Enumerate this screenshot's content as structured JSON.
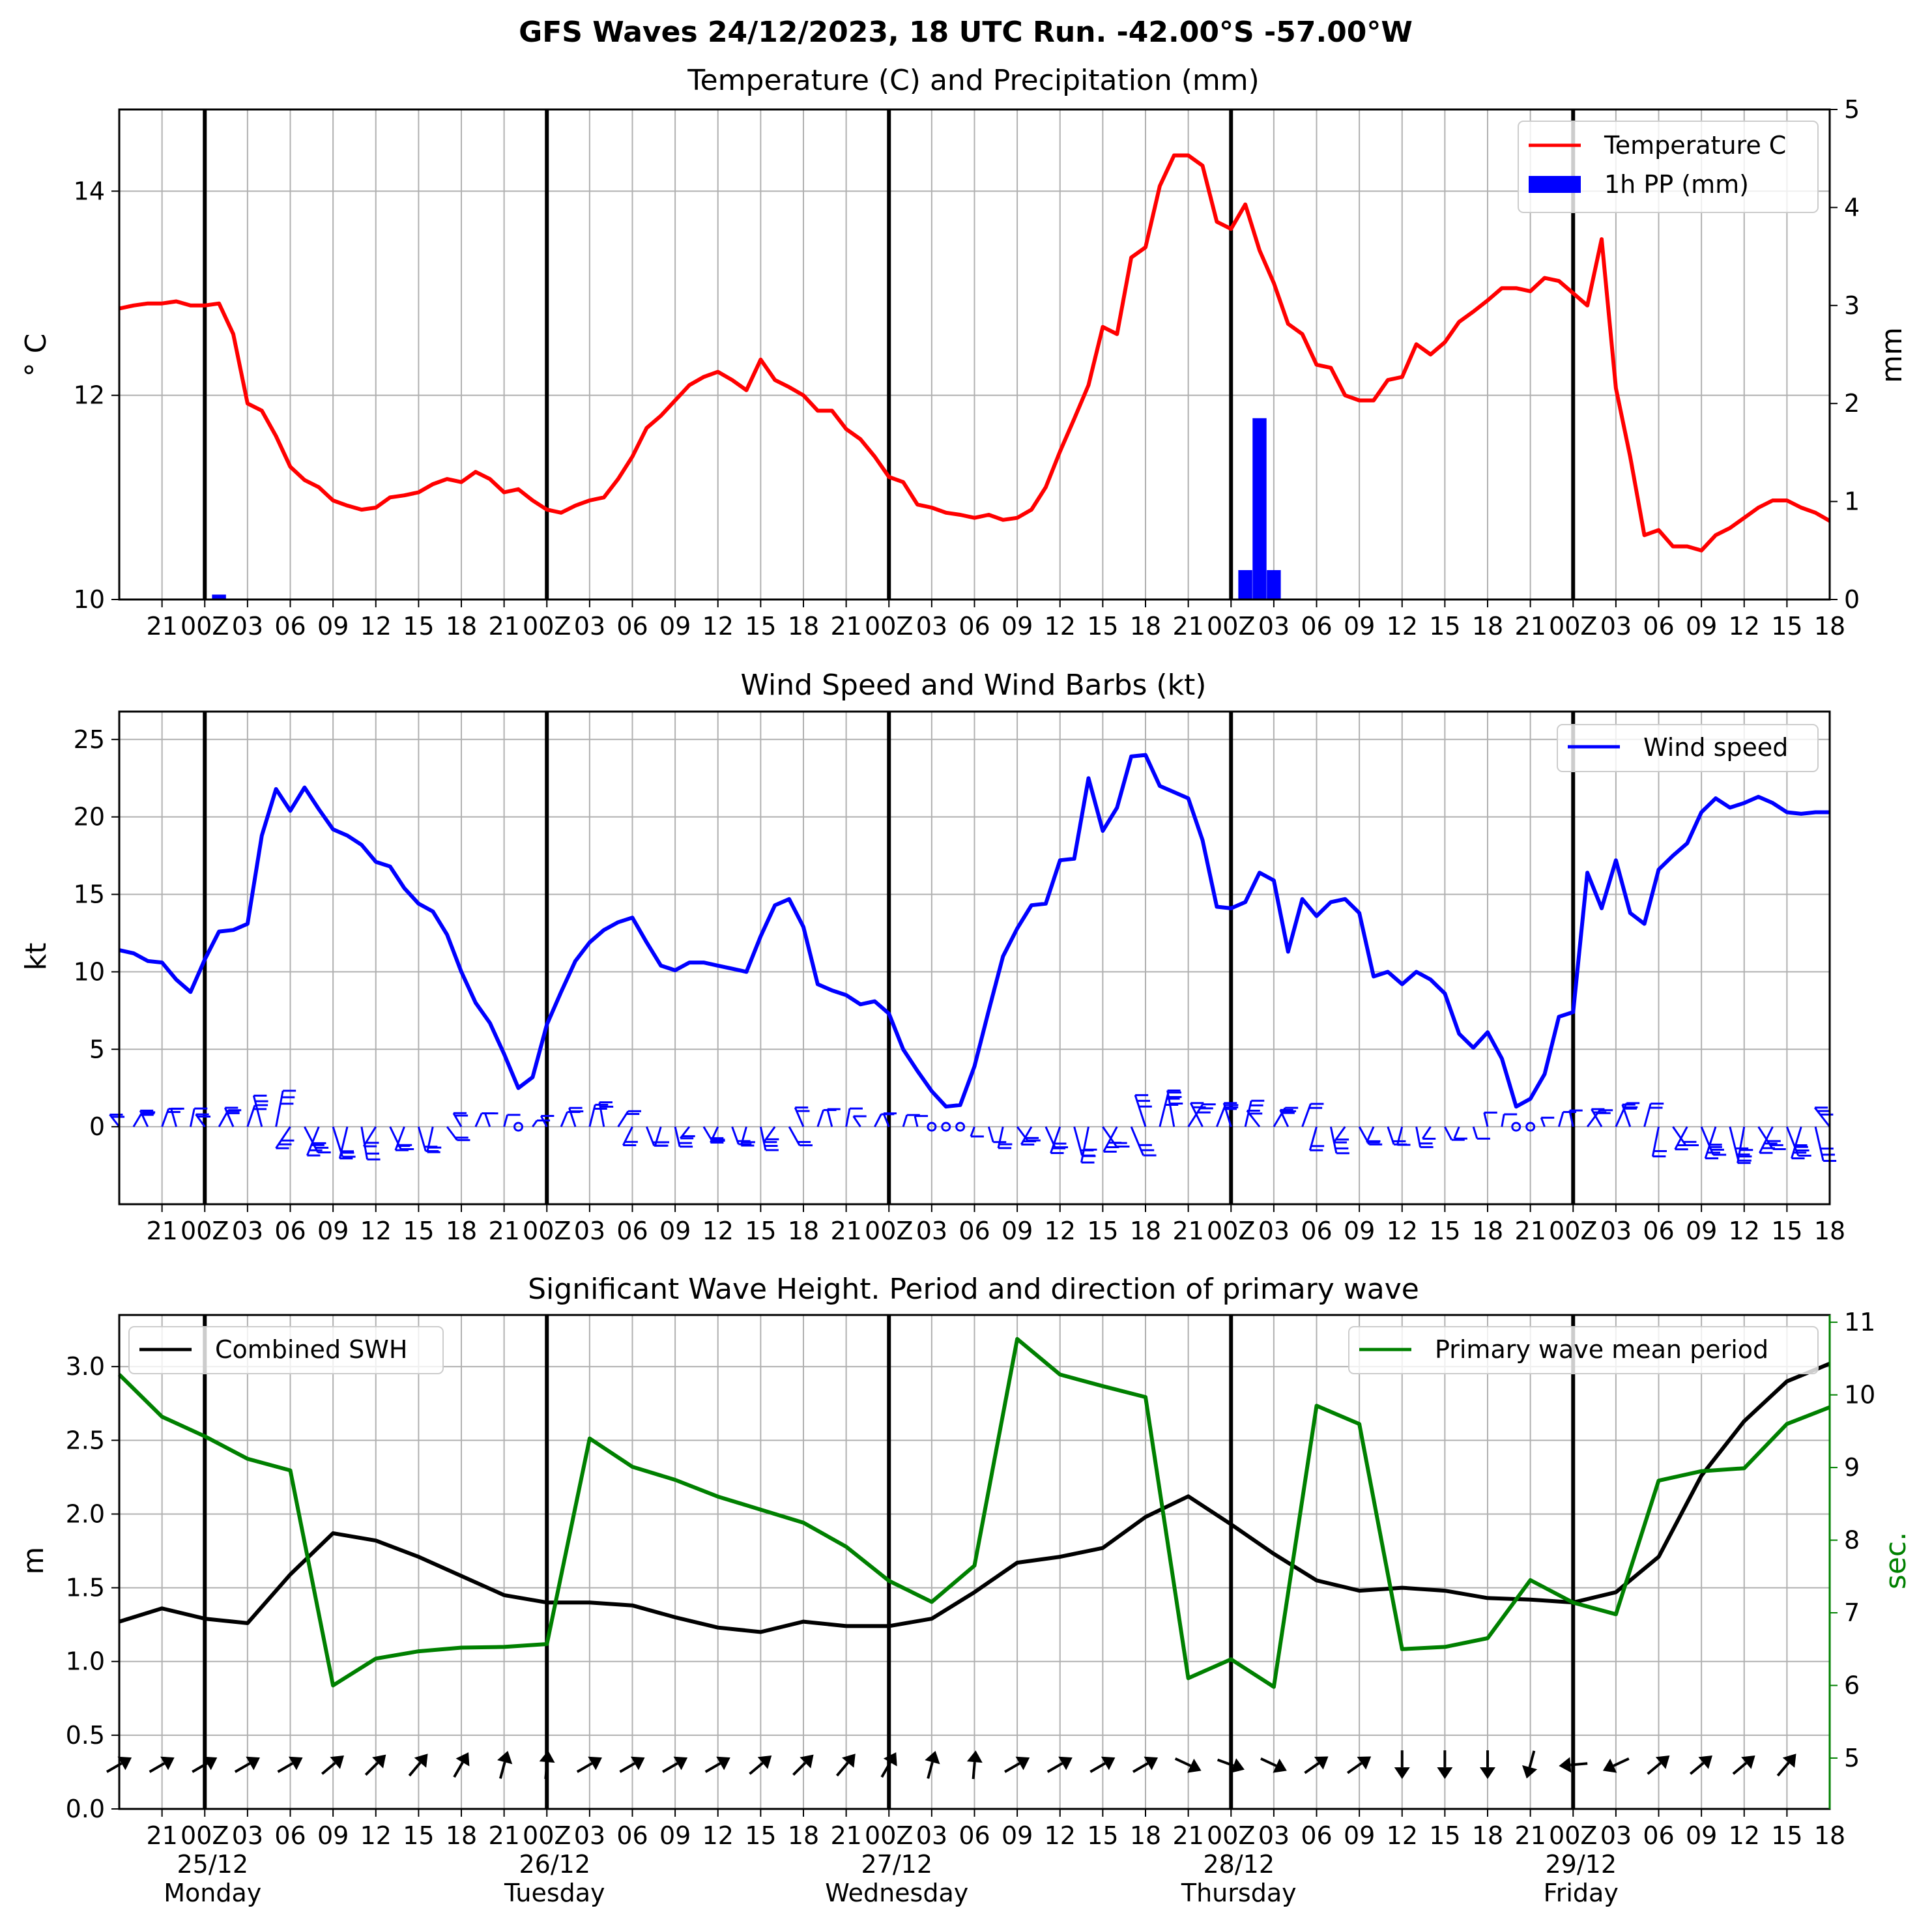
{
  "suptitle": "GFS Waves 24/12/2023, 18 UTC Run. -42.00°S -57.00°W",
  "x_tick_labels": [
    "21",
    "00Z",
    "03",
    "06",
    "09",
    "12",
    "15",
    "18"
  ],
  "x_day_labels": [
    {
      "date": "25/12",
      "day": "Monday"
    },
    {
      "date": "26/12",
      "day": "Tuesday"
    },
    {
      "date": "27/12",
      "day": "Wednesday"
    },
    {
      "date": "28/12",
      "day": "Thursday"
    },
    {
      "date": "29/12",
      "day": "Friday"
    }
  ],
  "colors": {
    "temperature": "#ff0000",
    "precip": "#0000ff",
    "wind": "#0000ff",
    "swh": "#000000",
    "period": "#008000",
    "grid": "#b0b0b0"
  },
  "chart_data": [
    {
      "type": "line",
      "title": "Temperature (C) and Precipitation (mm)",
      "ylabel": "$^\\circ$C",
      "y2label": "mm",
      "ylim": [
        10,
        14.8
      ],
      "y2lim": [
        0,
        5
      ],
      "yticks": [
        10,
        12,
        14
      ],
      "y2ticks": [
        0,
        1,
        2,
        3,
        4,
        5
      ],
      "x_unit": "hours after 2023-12-24 18 UTC",
      "xlim": [
        0,
        120
      ],
      "legend": "top-right",
      "series": [
        {
          "name": "Temperature C",
          "color": "#ff0000",
          "x": [
            0,
            1,
            2,
            3,
            4,
            5,
            6,
            7,
            8,
            9,
            10,
            11,
            12,
            13,
            14,
            15,
            16,
            17,
            18,
            19,
            20,
            21,
            22,
            23,
            24,
            25,
            26,
            27,
            28,
            29,
            30,
            31,
            32,
            33,
            34,
            35,
            36,
            37,
            38,
            39,
            40,
            41,
            42,
            43,
            44,
            45,
            46,
            47,
            48,
            49,
            50,
            51,
            52,
            53,
            54,
            55,
            56,
            57,
            58,
            59,
            60,
            61,
            62,
            63,
            64,
            65,
            66,
            67,
            68,
            69,
            70,
            71,
            72,
            73,
            74,
            75,
            76,
            77,
            78,
            79,
            80,
            81,
            82,
            83,
            84,
            85,
            86,
            87,
            88,
            89,
            90,
            91,
            92,
            93,
            94,
            95,
            96,
            97,
            98,
            99,
            100,
            101,
            102,
            103,
            104,
            105,
            106,
            107,
            108,
            109,
            110,
            111,
            112,
            113,
            114,
            115,
            116,
            117,
            118,
            119,
            120
          ],
          "y": [
            12.85,
            12.88,
            12.9,
            12.9,
            12.92,
            12.88,
            12.88,
            12.9,
            12.6,
            11.92,
            11.85,
            11.6,
            11.3,
            11.17,
            11.1,
            10.97,
            10.92,
            10.88,
            10.9,
            11.0,
            11.02,
            11.05,
            11.13,
            11.18,
            11.15,
            11.25,
            11.18,
            11.05,
            11.08,
            10.97,
            10.88,
            10.85,
            10.92,
            10.97,
            11.0,
            11.18,
            11.4,
            11.68,
            11.8,
            11.95,
            12.1,
            12.18,
            12.23,
            12.15,
            12.05,
            12.35,
            12.15,
            12.08,
            12.0,
            11.85,
            11.85,
            11.67,
            11.57,
            11.4,
            11.2,
            11.15,
            10.93,
            10.9,
            10.85,
            10.83,
            10.8,
            10.83,
            10.78,
            10.8,
            10.88,
            11.1,
            11.45,
            11.77,
            12.1,
            12.67,
            12.6,
            13.35,
            13.45,
            14.05,
            14.35,
            14.35,
            14.25,
            13.7,
            13.63,
            13.87,
            13.42,
            13.1,
            12.7,
            12.6,
            12.3,
            12.27,
            12.0,
            11.95,
            11.95,
            12.15,
            12.18,
            12.5,
            12.4,
            12.52,
            12.72,
            12.82,
            12.93,
            13.05,
            13.05,
            13.02,
            13.15,
            13.12,
            13.0,
            12.88,
            13.53,
            12.07,
            11.4,
            10.63,
            10.68,
            10.52,
            10.52,
            10.48,
            10.63,
            10.7,
            10.8,
            10.9,
            10.97,
            10.97,
            10.9,
            10.85,
            10.77
          ]
        },
        {
          "name": "1h PP (mm)",
          "color": "#0000ff",
          "axis": "right",
          "kind": "bar",
          "x": [
            7,
            79,
            80,
            81
          ],
          "y": [
            0.05,
            0.3,
            1.85,
            0.3
          ]
        }
      ]
    },
    {
      "type": "line",
      "title": "Wind Speed and Wind Barbs (kt)",
      "ylabel": "kt",
      "ylim": [
        -5,
        26.8
      ],
      "yticks": [
        0,
        5,
        10,
        15,
        20,
        25
      ],
      "x_unit": "hours after 2023-12-24 18 UTC",
      "xlim": [
        0,
        120
      ],
      "legend": "top-right",
      "series": [
        {
          "name": "Wind speed",
          "color": "#0000ff",
          "x": [
            0,
            1,
            2,
            3,
            4,
            5,
            6,
            7,
            8,
            9,
            10,
            11,
            12,
            13,
            14,
            15,
            16,
            17,
            18,
            19,
            20,
            21,
            22,
            23,
            24,
            25,
            26,
            27,
            28,
            29,
            30,
            31,
            32,
            33,
            34,
            35,
            36,
            37,
            38,
            39,
            40,
            41,
            42,
            43,
            44,
            45,
            46,
            47,
            48,
            49,
            50,
            51,
            52,
            53,
            54,
            55,
            56,
            57,
            58,
            59,
            60,
            61,
            62,
            63,
            64,
            65,
            66,
            67,
            68,
            69,
            70,
            71,
            72,
            73,
            74,
            75,
            76,
            77,
            78,
            79,
            80,
            81,
            82,
            83,
            84,
            85,
            86,
            87,
            88,
            89,
            90,
            91,
            92,
            93,
            94,
            95,
            96,
            97,
            98,
            99,
            100,
            101,
            102,
            103,
            104,
            105,
            106,
            107,
            108,
            109,
            110,
            111,
            112,
            113,
            114,
            115,
            116,
            117,
            118,
            119,
            120
          ],
          "y": [
            11.4,
            11.2,
            10.7,
            10.6,
            9.5,
            8.7,
            10.8,
            12.6,
            12.7,
            13.1,
            18.8,
            21.8,
            20.4,
            21.9,
            20.5,
            19.2,
            18.8,
            18.2,
            17.1,
            16.8,
            15.4,
            14.4,
            13.9,
            12.4,
            10.0,
            8.0,
            6.7,
            4.7,
            2.5,
            3.2,
            6.6,
            8.7,
            10.7,
            11.9,
            12.7,
            13.2,
            13.5,
            11.9,
            10.4,
            10.1,
            10.6,
            10.6,
            10.4,
            10.2,
            10.0,
            12.3,
            14.3,
            14.7,
            12.9,
            9.2,
            8.8,
            8.5,
            7.9,
            8.1,
            7.3,
            5.0,
            3.6,
            2.3,
            1.3,
            1.4,
            3.9,
            7.5,
            11.0,
            12.8,
            14.3,
            14.4,
            17.2,
            17.3,
            22.5,
            19.1,
            20.6,
            23.9,
            24.0,
            22.0,
            21.6,
            21.2,
            18.5,
            14.2,
            14.1,
            14.5,
            16.4,
            15.9,
            11.3,
            14.7,
            13.6,
            14.5,
            14.7,
            13.8,
            9.7,
            10.0,
            9.2,
            10.0,
            9.5,
            8.6,
            6.0,
            5.1,
            6.1,
            4.4,
            1.3,
            1.8,
            3.4,
            7.1,
            7.4,
            16.4,
            14.1,
            17.2,
            13.8,
            13.1,
            16.6,
            17.5,
            18.3,
            20.3,
            21.2,
            20.6,
            20.9,
            21.3,
            20.9,
            20.3,
            20.2,
            20.3,
            20.3
          ]
        }
      ]
    },
    {
      "type": "line",
      "title": "Significant Wave Height. Period and direction of primary wave",
      "ylabel": "m",
      "y2label": "sec.",
      "ylim": [
        0,
        3.35
      ],
      "y2lim": [
        4.3,
        11.1
      ],
      "yticks": [
        0.0,
        0.5,
        1.0,
        1.5,
        2.0,
        2.5,
        3.0
      ],
      "y2ticks": [
        5,
        6,
        7,
        8,
        9,
        10,
        11
      ],
      "x_unit": "hours after 2023-12-24 18 UTC",
      "xlim": [
        0,
        120
      ],
      "legend_left": "top-left",
      "legend_right": "top-right",
      "series": [
        {
          "name": "Combined SWH",
          "color": "#000000",
          "x": [
            0,
            3,
            6,
            9,
            12,
            15,
            18,
            21,
            24,
            27,
            30,
            33,
            36,
            39,
            42,
            45,
            48,
            51,
            54,
            57,
            60,
            63,
            66,
            69,
            72,
            75,
            78,
            81,
            84,
            87,
            90,
            93,
            96,
            99,
            102,
            105,
            108,
            111,
            114,
            117,
            120
          ],
          "y": [
            1.27,
            1.36,
            1.29,
            1.26,
            1.59,
            1.87,
            1.82,
            1.71,
            1.58,
            1.45,
            1.4,
            1.4,
            1.38,
            1.3,
            1.23,
            1.2,
            1.27,
            1.24,
            1.24,
            1.29,
            1.47,
            1.67,
            1.71,
            1.77,
            1.98,
            2.12,
            1.93,
            1.73,
            1.55,
            1.48,
            1.5,
            1.48,
            1.43,
            1.42,
            1.4,
            1.47,
            1.71,
            2.26,
            2.63,
            2.9,
            3.02
          ]
        },
        {
          "name": "Primary wave mean period",
          "color": "#008000",
          "axis": "right",
          "x": [
            0,
            3,
            6,
            9,
            12,
            15,
            18,
            21,
            24,
            27,
            30,
            33,
            36,
            39,
            42,
            45,
            48,
            51,
            54,
            57,
            60,
            63,
            66,
            69,
            72,
            75,
            78,
            81,
            84,
            87,
            90,
            93,
            96,
            99,
            102,
            105,
            108,
            111,
            114,
            117,
            120
          ],
          "y": [
            10.28,
            9.7,
            9.43,
            9.12,
            8.96,
            6.0,
            6.37,
            6.47,
            6.52,
            6.53,
            6.57,
            9.4,
            9.01,
            8.83,
            8.6,
            8.42,
            8.24,
            7.91,
            7.44,
            7.15,
            7.65,
            10.77,
            10.28,
            10.12,
            9.97,
            6.1,
            6.36,
            5.98,
            9.85,
            9.6,
            6.5,
            6.53,
            6.65,
            7.45,
            7.14,
            6.98,
            8.82,
            8.95,
            8.99,
            9.6,
            9.83
          ]
        },
        {
          "name": "primary wave direction",
          "kind": "arrows",
          "x": [
            0,
            3,
            6,
            9,
            12,
            15,
            18,
            21,
            24,
            27,
            30,
            33,
            36,
            39,
            42,
            45,
            48,
            51,
            54,
            57,
            60,
            63,
            66,
            69,
            72,
            75,
            78,
            81,
            84,
            87,
            90,
            93,
            96,
            99,
            102,
            105,
            108,
            111,
            114,
            117
          ],
          "heading_deg": [
            60,
            60,
            60,
            60,
            60,
            50,
            45,
            40,
            30,
            15,
            5,
            60,
            60,
            60,
            60,
            50,
            45,
            40,
            30,
            15,
            5,
            60,
            60,
            60,
            60,
            115,
            110,
            115,
            55,
            55,
            180,
            180,
            180,
            195,
            265,
            245,
            50,
            50,
            50,
            40
          ]
        }
      ]
    }
  ]
}
